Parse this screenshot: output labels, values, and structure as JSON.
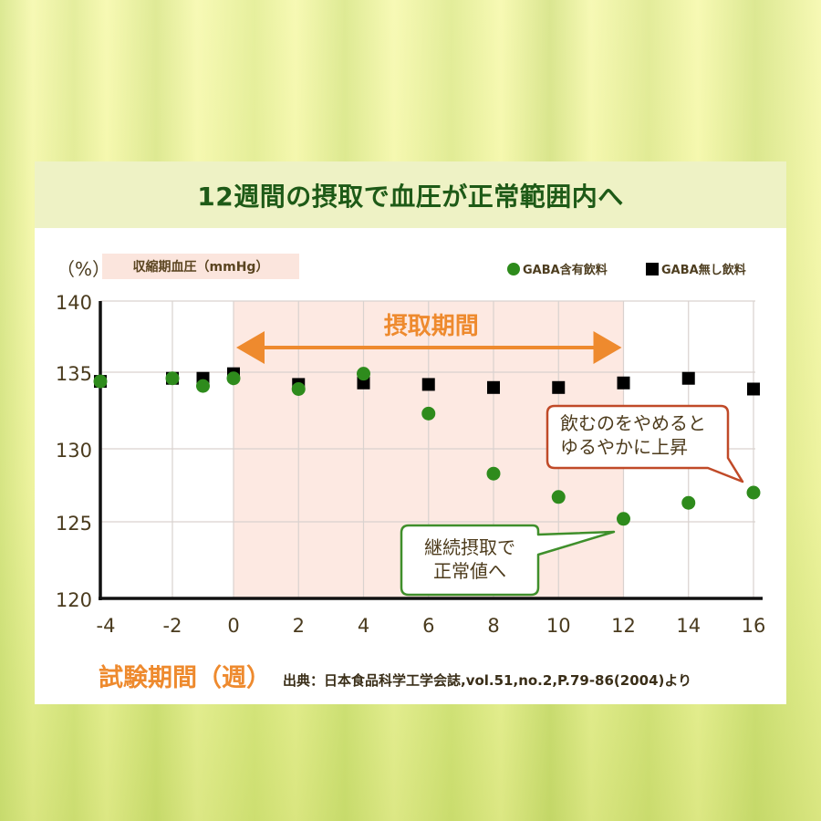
{
  "title": "12週間の摂取で血圧が正常範囲内へ",
  "chart": {
    "y_unit": "（%）",
    "metric_label": "収縮期血圧（mmHg）",
    "period_label": "摂取期間",
    "xlabel": "試験期間（週）",
    "source": "出典：日本食品科学工学会誌,vol.51,no.2,P.79-86(2004)より",
    "legend": [
      {
        "label": "GABA含有飲料",
        "marker": "circle",
        "color": "#2e8b1c"
      },
      {
        "label": "GABA無し飲料",
        "marker": "square",
        "color": "#000000"
      }
    ],
    "callouts": [
      {
        "lines": [
          "飲むのをやめると",
          "ゆるやかに上昇"
        ],
        "border": "#c04a28"
      },
      {
        "lines": [
          "継続摂取で",
          "正常値へ"
        ],
        "border": "#3f8f2b"
      }
    ]
  },
  "colors": {
    "title": "#1e5a17",
    "title_band": "#eef2c5",
    "accent_orange": "#ee8a2e",
    "shading": "#fde9e2",
    "gaba_green": "#2e8b1c",
    "control_black": "#000000",
    "text_dark": "#4a3b1e"
  },
  "chart_data": {
    "type": "scatter",
    "title": "12週間の摂取で血圧が正常範囲内へ",
    "xlabel": "試験期間（週）",
    "ylabel": "収縮期血圧（mmHg）",
    "y_unit": "（%）",
    "x": [
      -4,
      -2,
      -1,
      0,
      2,
      4,
      6,
      8,
      10,
      12,
      14,
      16
    ],
    "xticks": [
      -4,
      -2,
      0,
      2,
      4,
      6,
      8,
      10,
      12,
      14,
      16
    ],
    "yticks": [
      120,
      125,
      130,
      135,
      140
    ],
    "xlim": [
      -4,
      16
    ],
    "ylim": [
      120,
      140
    ],
    "grid": true,
    "legend_position": "top-right",
    "series": [
      {
        "name": "GABA無し飲料",
        "marker": "square",
        "color": "#000000",
        "values": [
          134.4,
          134.6,
          134.6,
          134.9,
          134.2,
          134.3,
          134.2,
          134.0,
          134.0,
          134.3,
          134.6,
          133.9
        ]
      },
      {
        "name": "GABA含有飲料",
        "marker": "circle",
        "color": "#2e8b1c",
        "values": [
          134.4,
          134.6,
          134.1,
          134.6,
          133.9,
          134.9,
          132.3,
          128.3,
          126.7,
          125.2,
          126.3,
          127.0
        ]
      }
    ],
    "shaded_region": {
      "label": "摂取期間",
      "x_start": 0,
      "x_end": 12,
      "color": "#fde9e2",
      "arrow_color": "#ee8a2e"
    },
    "annotations": [
      {
        "text": "飲むのをやめるとゆるやかに上昇",
        "x": 16,
        "series": "GABA含有飲料"
      },
      {
        "text": "継続摂取で正常値へ",
        "x": 12,
        "series": "GABA含有飲料"
      }
    ],
    "source": "出典：日本食品科学工学会誌,vol.51,no.2,P.79-86(2004)より"
  }
}
